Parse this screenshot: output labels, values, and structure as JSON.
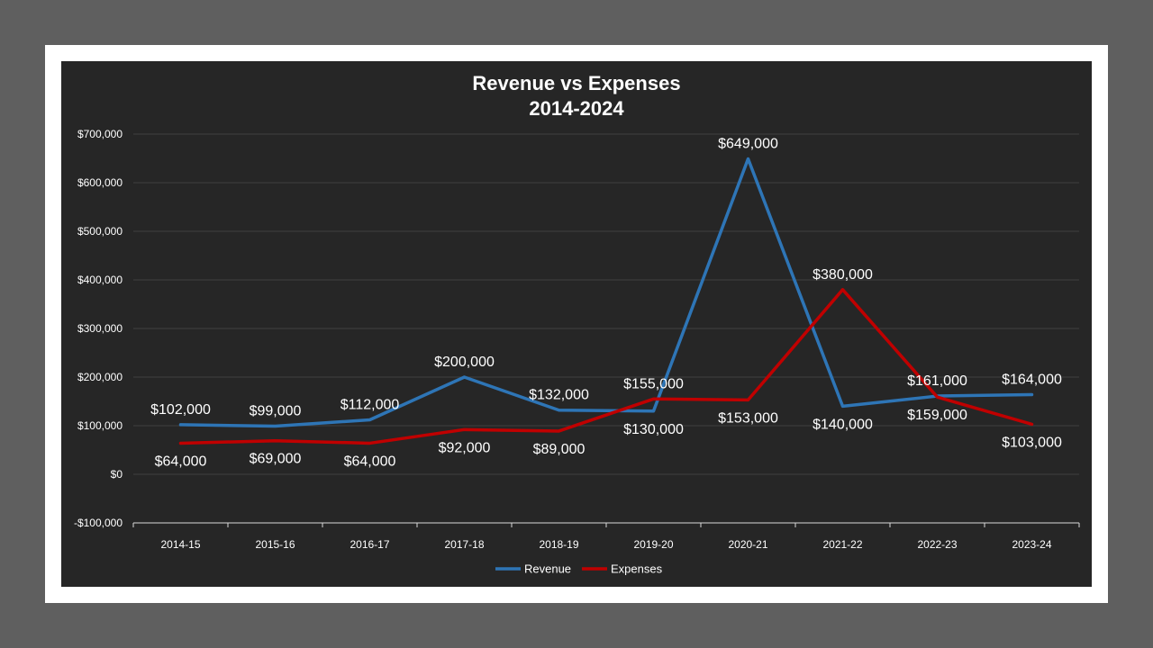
{
  "chart_data": {
    "type": "line",
    "title": "Revenue vs Expenses",
    "subtitle": "2014-2024",
    "xlabel": "",
    "ylabel": "",
    "categories": [
      "2014-15",
      "2015-16",
      "2016-17",
      "2017-18",
      "2018-19",
      "2019-20",
      "2020-21",
      "2021-22",
      "2022-23",
      "2023-24"
    ],
    "series": [
      {
        "name": "Revenue",
        "color": "#2e75b6",
        "values": [
          102000,
          99000,
          112000,
          200000,
          132000,
          130000,
          649000,
          140000,
          161000,
          164000
        ],
        "labels": [
          "$102,000",
          "$99,000",
          "$112,000",
          "$200,000",
          "$132,000",
          "$130,000",
          "$649,000",
          "$140,000",
          "$161,000",
          "$164,000"
        ]
      },
      {
        "name": "Expenses",
        "color": "#c00000",
        "values": [
          64000,
          69000,
          64000,
          92000,
          89000,
          155000,
          153000,
          380000,
          159000,
          103000
        ],
        "labels": [
          "$64,000",
          "$69,000",
          "$64,000",
          "$92,000",
          "$89,000",
          "$155,000",
          "$153,000",
          "$380,000",
          "$159,000",
          "$103,000"
        ]
      }
    ],
    "ylim": [
      -100000,
      700000
    ],
    "yticks": [
      -100000,
      0,
      100000,
      200000,
      300000,
      400000,
      500000,
      600000,
      700000
    ],
    "ytick_labels": [
      "-$100,000",
      "$0",
      "$100,000",
      "$200,000",
      "$300,000",
      "$400,000",
      "$500,000",
      "$600,000",
      "$700,000"
    ],
    "grid": true,
    "legend_position": "bottom",
    "background": "#262626"
  }
}
